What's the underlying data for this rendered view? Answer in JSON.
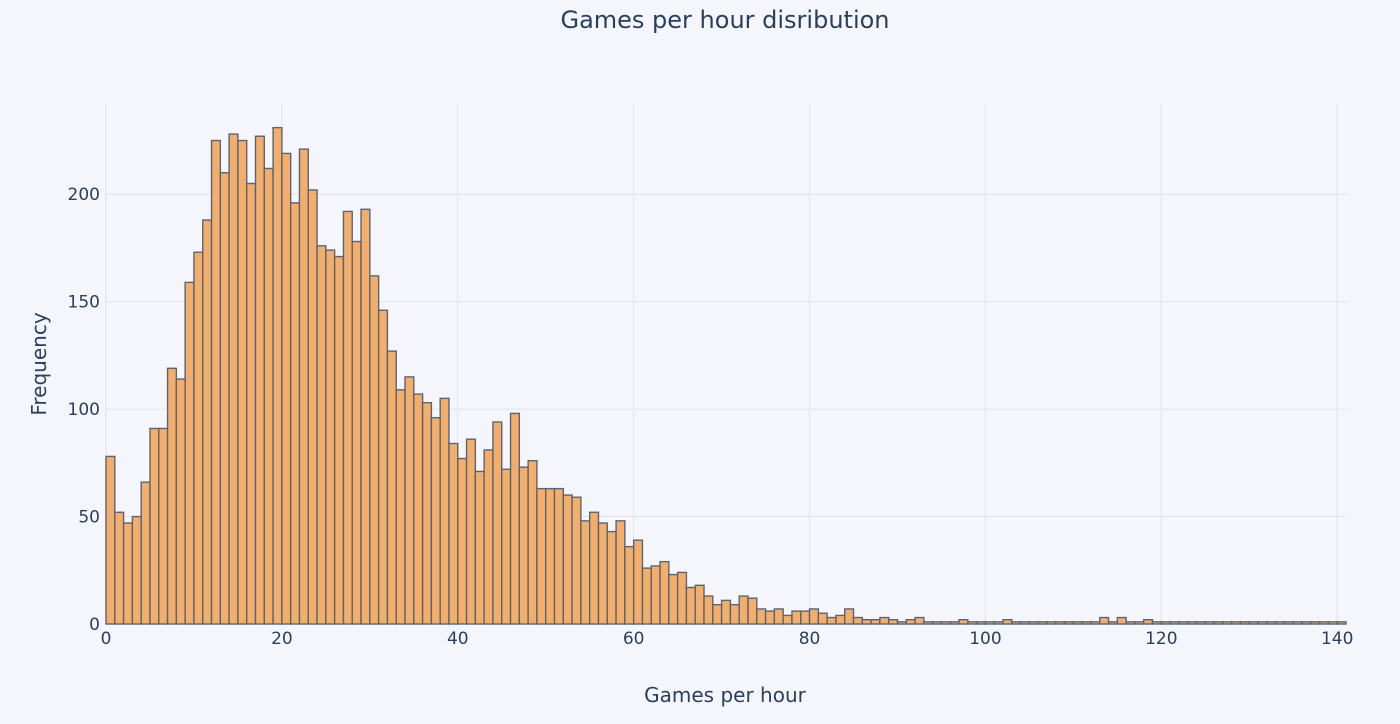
{
  "chart_data": {
    "type": "bar",
    "title": "Games per hour disribution",
    "xlabel": "Games per hour",
    "ylabel": "Frequency",
    "xlim": [
      0,
      141
    ],
    "ylim": [
      0,
      242
    ],
    "x_ticks": [
      0,
      20,
      40,
      60,
      80,
      100,
      120,
      140
    ],
    "y_ticks": [
      0,
      50,
      100,
      150,
      200
    ],
    "grid": true,
    "bin_width": 1,
    "bin_start": 0,
    "values": [
      78,
      52,
      47,
      50,
      66,
      91,
      91,
      119,
      114,
      159,
      173,
      188,
      225,
      210,
      228,
      225,
      205,
      227,
      212,
      231,
      219,
      196,
      221,
      202,
      176,
      174,
      171,
      192,
      178,
      193,
      162,
      146,
      127,
      109,
      115,
      107,
      103,
      96,
      105,
      84,
      77,
      86,
      71,
      81,
      94,
      72,
      98,
      73,
      76,
      63,
      63,
      63,
      60,
      59,
      48,
      52,
      47,
      43,
      48,
      36,
      39,
      26,
      27,
      29,
      23,
      24,
      17,
      18,
      13,
      9,
      11,
      9,
      13,
      12,
      7,
      6,
      7,
      4,
      6,
      6,
      7,
      5,
      3,
      4,
      7,
      3,
      2,
      2,
      3,
      2,
      1,
      2,
      3,
      1,
      1,
      1,
      1,
      2,
      1,
      1,
      1,
      1,
      2,
      1,
      1,
      1,
      1,
      1,
      1,
      1,
      1,
      1,
      1,
      3,
      1,
      3,
      1,
      1,
      2,
      1,
      1,
      1,
      1,
      1,
      1,
      1,
      1,
      1,
      1,
      1,
      1,
      1,
      1,
      1,
      1,
      1,
      1,
      1,
      1,
      1,
      1
    ],
    "values_note_skip": "",
    "bins": [
      {
        "x": 0,
        "y": 78
      },
      {
        "x": 1,
        "y": 52
      },
      {
        "x": 2,
        "y": 47
      },
      {
        "x": 3,
        "y": 50
      },
      {
        "x": 4,
        "y": 66
      },
      {
        "x": 5,
        "y": 91
      },
      {
        "x": 6,
        "y": 91
      },
      {
        "x": 7,
        "y": 119
      },
      {
        "x": 8,
        "y": 114
      },
      {
        "x": 9,
        "y": 159
      },
      {
        "x": 10,
        "y": 173
      },
      {
        "x": 11,
        "y": 188
      },
      {
        "x": 12,
        "y": 225
      },
      {
        "x": 13,
        "y": 210
      },
      {
        "x": 14,
        "y": 228
      },
      {
        "x": 15,
        "y": 225
      },
      {
        "x": 16,
        "y": 205
      },
      {
        "x": 17,
        "y": 227
      },
      {
        "x": 18,
        "y": 212
      },
      {
        "x": 19,
        "y": 231
      },
      {
        "x": 20,
        "y": 219
      },
      {
        "x": 21,
        "y": 196
      },
      {
        "x": 22,
        "y": 221
      },
      {
        "x": 23,
        "y": 202
      },
      {
        "x": 24,
        "y": 176
      },
      {
        "x": 25,
        "y": 174
      },
      {
        "x": 26,
        "y": 171
      },
      {
        "x": 27,
        "y": 192
      },
      {
        "x": 28,
        "y": 178
      },
      {
        "x": 29,
        "y": 193
      },
      {
        "x": 30,
        "y": 162
      },
      {
        "x": 31,
        "y": 146
      },
      {
        "x": 32,
        "y": 127
      },
      {
        "x": 33,
        "y": 109
      },
      {
        "x": 34,
        "y": 115
      },
      {
        "x": 35,
        "y": 107
      },
      {
        "x": 36,
        "y": 103
      },
      {
        "x": 37,
        "y": 96
      },
      {
        "x": 38,
        "y": 105
      },
      {
        "x": 39,
        "y": 84
      },
      {
        "x": 40,
        "y": 77
      },
      {
        "x": 41,
        "y": 86
      },
      {
        "x": 42,
        "y": 71
      },
      {
        "x": 43,
        "y": 81
      },
      {
        "x": 44,
        "y": 94
      },
      {
        "x": 45,
        "y": 72
      },
      {
        "x": 46,
        "y": 98
      },
      {
        "x": 47,
        "y": 73
      },
      {
        "x": 48,
        "y": 76
      },
      {
        "x": 49,
        "y": 63
      },
      {
        "x": 50,
        "y": 63
      },
      {
        "x": 51,
        "y": 63
      },
      {
        "x": 52,
        "y": 60
      },
      {
        "x": 53,
        "y": 59
      },
      {
        "x": 54,
        "y": 48
      },
      {
        "x": 55,
        "y": 52
      },
      {
        "x": 56,
        "y": 47
      },
      {
        "x": 57,
        "y": 43
      },
      {
        "x": 58,
        "y": 48
      },
      {
        "x": 59,
        "y": 36
      },
      {
        "x": 60,
        "y": 39
      },
      {
        "x": 61,
        "y": 26
      },
      {
        "x": 62,
        "y": 27
      },
      {
        "x": 63,
        "y": 29
      },
      {
        "x": 64,
        "y": 23
      },
      {
        "x": 65,
        "y": 24
      },
      {
        "x": 66,
        "y": 17
      },
      {
        "x": 67,
        "y": 18
      },
      {
        "x": 68,
        "y": 13
      },
      {
        "x": 69,
        "y": 9
      },
      {
        "x": 70,
        "y": 11
      },
      {
        "x": 71,
        "y": 9
      },
      {
        "x": 72,
        "y": 13
      },
      {
        "x": 73,
        "y": 12
      },
      {
        "x": 74,
        "y": 7
      },
      {
        "x": 75,
        "y": 6
      },
      {
        "x": 76,
        "y": 7
      },
      {
        "x": 77,
        "y": 4
      },
      {
        "x": 78,
        "y": 6
      },
      {
        "x": 79,
        "y": 6
      },
      {
        "x": 80,
        "y": 7
      },
      {
        "x": 81,
        "y": 5
      },
      {
        "x": 82,
        "y": 3
      },
      {
        "x": 83,
        "y": 4
      },
      {
        "x": 84,
        "y": 7
      },
      {
        "x": 85,
        "y": 3
      },
      {
        "x": 86,
        "y": 2
      },
      {
        "x": 87,
        "y": 2
      },
      {
        "x": 88,
        "y": 3
      },
      {
        "x": 89,
        "y": 2
      },
      {
        "x": 90,
        "y": 1
      },
      {
        "x": 91,
        "y": 2
      },
      {
        "x": 92,
        "y": 3
      },
      {
        "x": 93,
        "y": 1
      },
      {
        "x": 94,
        "y": 1
      },
      {
        "x": 95,
        "y": 1
      },
      {
        "x": 96,
        "y": 1
      },
      {
        "x": 97,
        "y": 2
      },
      {
        "x": 98,
        "y": 1
      },
      {
        "x": 99,
        "y": 1
      },
      {
        "x": 100,
        "y": 1
      },
      {
        "x": 101,
        "y": 1
      },
      {
        "x": 102,
        "y": 2
      },
      {
        "x": 103,
        "y": 1
      },
      {
        "x": 104,
        "y": 1
      },
      {
        "x": 105,
        "y": 1
      },
      {
        "x": 106,
        "y": 1
      },
      {
        "x": 107,
        "y": 1
      },
      {
        "x": 108,
        "y": 1
      },
      {
        "x": 109,
        "y": 1
      },
      {
        "x": 110,
        "y": 1
      },
      {
        "x": 111,
        "y": 1
      },
      {
        "x": 112,
        "y": 1
      },
      {
        "x": 113,
        "y": 3
      },
      {
        "x": 114,
        "y": 1
      },
      {
        "x": 115,
        "y": 3
      },
      {
        "x": 116,
        "y": 1
      },
      {
        "x": 117,
        "y": 1
      },
      {
        "x": 118,
        "y": 2
      },
      {
        "x": 119,
        "y": 1
      },
      {
        "x": 120,
        "y": 1
      },
      {
        "x": 121,
        "y": 1
      },
      {
        "x": 122,
        "y": 1
      },
      {
        "x": 123,
        "y": 1
      },
      {
        "x": 124,
        "y": 1
      },
      {
        "x": 125,
        "y": 1
      },
      {
        "x": 126,
        "y": 1
      },
      {
        "x": 127,
        "y": 1
      },
      {
        "x": 128,
        "y": 1
      },
      {
        "x": 129,
        "y": 1
      },
      {
        "x": 130,
        "y": 1
      },
      {
        "x": 131,
        "y": 1
      },
      {
        "x": 132,
        "y": 1
      },
      {
        "x": 133,
        "y": 1
      },
      {
        "x": 134,
        "y": 1
      },
      {
        "x": 135,
        "y": 1
      },
      {
        "x": 136,
        "y": 1
      },
      {
        "x": 137,
        "y": 1
      },
      {
        "x": 138,
        "y": 1
      },
      {
        "x": 139,
        "y": 1
      },
      {
        "x": 140,
        "y": 1
      }
    ],
    "colors": {
      "bar_fill": "#f4ae6b",
      "bar_outline": "#5a6478",
      "background": "#f5f6fb",
      "grid": "#dfe3ec",
      "text": "#2a3f5f"
    }
  }
}
